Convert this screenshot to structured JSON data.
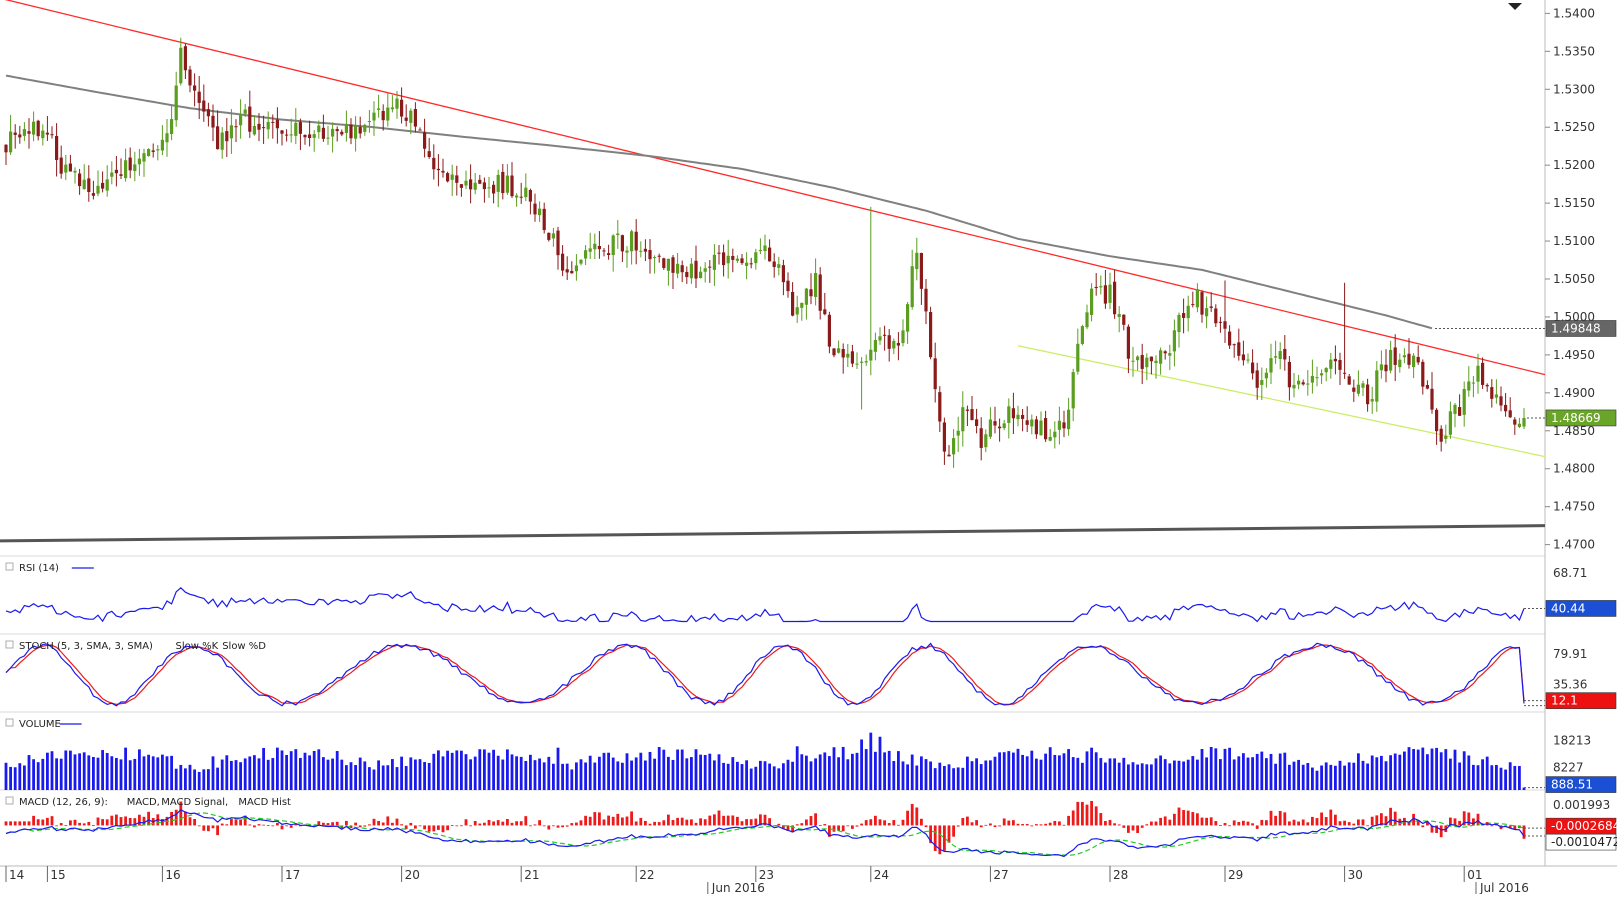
{
  "chart_data": {
    "type": "candlestick",
    "price_panel": {
      "y_ticks": [
        "1.5400",
        "1.5350",
        "1.5300",
        "1.5250",
        "1.5200",
        "1.5150",
        "1.5100",
        "1.5050",
        "1.5000",
        "1.4950",
        "1.4900",
        "1.4850",
        "1.4800",
        "1.4750",
        "1.4700"
      ],
      "ylim": [
        1.4685,
        1.5415
      ],
      "last_price": "1.48669",
      "ma_value": "1.49848",
      "sma_series": [
        {
          "i": 0,
          "v": 1.5318
        },
        {
          "i": 20,
          "v": 1.5296
        },
        {
          "i": 40,
          "v": 1.5275
        },
        {
          "i": 60,
          "v": 1.526
        },
        {
          "i": 80,
          "v": 1.525
        },
        {
          "i": 100,
          "v": 1.5237
        },
        {
          "i": 120,
          "v": 1.5225
        },
        {
          "i": 140,
          "v": 1.5212
        },
        {
          "i": 160,
          "v": 1.5195
        },
        {
          "i": 180,
          "v": 1.517
        },
        {
          "i": 200,
          "v": 1.514
        },
        {
          "i": 220,
          "v": 1.5103
        },
        {
          "i": 240,
          "v": 1.508
        },
        {
          "i": 260,
          "v": 1.5062
        },
        {
          "i": 280,
          "v": 1.5032
        },
        {
          "i": 300,
          "v": 1.5002
        },
        {
          "i": 310,
          "v": 1.4985
        }
      ],
      "resistance_line": {
        "start": {
          "i": 0,
          "v": 1.542
        },
        "end": {
          "i": 330,
          "v": 1.4924
        }
      },
      "channel_support_line": {
        "start": {
          "i": 220,
          "v": 1.4962
        },
        "end": {
          "i": 330,
          "v": 1.4816
        }
      },
      "long_support_line": {
        "start": {
          "i": 0,
          "v": 1.4705
        },
        "end": {
          "i": 330,
          "v": 1.4725
        }
      },
      "anchors": [
        {
          "i": 0,
          "v": 1.523
        },
        {
          "i": 8,
          "v": 1.5255
        },
        {
          "i": 12,
          "v": 1.52
        },
        {
          "i": 20,
          "v": 1.516
        },
        {
          "i": 26,
          "v": 1.52
        },
        {
          "i": 32,
          "v": 1.521
        },
        {
          "i": 36,
          "v": 1.525
        },
        {
          "i": 38,
          "v": 1.536
        },
        {
          "i": 42,
          "v": 1.527
        },
        {
          "i": 46,
          "v": 1.523
        },
        {
          "i": 52,
          "v": 1.526
        },
        {
          "i": 60,
          "v": 1.524
        },
        {
          "i": 70,
          "v": 1.5245
        },
        {
          "i": 78,
          "v": 1.525
        },
        {
          "i": 84,
          "v": 1.528
        },
        {
          "i": 88,
          "v": 1.527
        },
        {
          "i": 92,
          "v": 1.52
        },
        {
          "i": 96,
          "v": 1.5185
        },
        {
          "i": 104,
          "v": 1.5175
        },
        {
          "i": 112,
          "v": 1.517
        },
        {
          "i": 116,
          "v": 1.513
        },
        {
          "i": 122,
          "v": 1.5065
        },
        {
          "i": 130,
          "v": 1.5095
        },
        {
          "i": 138,
          "v": 1.51
        },
        {
          "i": 146,
          "v": 1.506
        },
        {
          "i": 154,
          "v": 1.507
        },
        {
          "i": 160,
          "v": 1.508
        },
        {
          "i": 166,
          "v": 1.5085
        },
        {
          "i": 172,
          "v": 1.5
        },
        {
          "i": 176,
          "v": 1.5045
        },
        {
          "i": 180,
          "v": 1.495
        },
        {
          "i": 186,
          "v": 1.4935
        },
        {
          "i": 190,
          "v": 1.498
        },
        {
          "i": 194,
          "v": 1.495
        },
        {
          "i": 198,
          "v": 1.509
        },
        {
          "i": 201,
          "v": 1.496
        },
        {
          "i": 204,
          "v": 1.481
        },
        {
          "i": 208,
          "v": 1.488
        },
        {
          "i": 212,
          "v": 1.484
        },
        {
          "i": 218,
          "v": 1.487
        },
        {
          "i": 224,
          "v": 1.485
        },
        {
          "i": 230,
          "v": 1.485
        },
        {
          "i": 233,
          "v": 1.496
        },
        {
          "i": 236,
          "v": 1.504
        },
        {
          "i": 240,
          "v": 1.503
        },
        {
          "i": 244,
          "v": 1.496
        },
        {
          "i": 250,
          "v": 1.493
        },
        {
          "i": 254,
          "v": 1.4975
        },
        {
          "i": 258,
          "v": 1.503
        },
        {
          "i": 264,
          "v": 1.499
        },
        {
          "i": 268,
          "v": 1.496
        },
        {
          "i": 272,
          "v": 1.492
        },
        {
          "i": 276,
          "v": 1.496
        },
        {
          "i": 280,
          "v": 1.4905
        },
        {
          "i": 286,
          "v": 1.494
        },
        {
          "i": 292,
          "v": 1.492
        },
        {
          "i": 296,
          "v": 1.4895
        },
        {
          "i": 300,
          "v": 1.494
        },
        {
          "i": 304,
          "v": 1.495
        },
        {
          "i": 308,
          "v": 1.492
        },
        {
          "i": 312,
          "v": 1.4845
        },
        {
          "i": 316,
          "v": 1.488
        },
        {
          "i": 320,
          "v": 1.4925
        },
        {
          "i": 324,
          "v": 1.489
        },
        {
          "i": 326,
          "v": 1.4867
        }
      ]
    },
    "x_axis": {
      "labels": [
        {
          "text": "14",
          "i": 0
        },
        {
          "text": "15",
          "i": 9
        },
        {
          "text": "16",
          "i": 34
        },
        {
          "text": "17",
          "i": 60
        },
        {
          "text": "20",
          "i": 86
        },
        {
          "text": "21",
          "i": 112
        },
        {
          "text": "22",
          "i": 137
        },
        {
          "text": "23",
          "i": 163
        },
        {
          "text": "24",
          "i": 188
        },
        {
          "text": "27",
          "i": 214
        },
        {
          "text": "28",
          "i": 240
        },
        {
          "text": "29",
          "i": 265
        },
        {
          "text": "30",
          "i": 291
        },
        {
          "text": "01",
          "i": 317
        }
      ],
      "month_labels": [
        {
          "text": "Jun 2016",
          "i": 153
        },
        {
          "text": "Jul 2016",
          "i": 320
        }
      ]
    },
    "indicators": {
      "rsi": {
        "label": "RSI (14)",
        "ticks": [
          "68.71"
        ],
        "last": "40.44"
      },
      "stoch": {
        "label": "STOCH (5, 3, SMA, 3, SMA)",
        "k_label": "Slow %K",
        "d_label": "Slow %D",
        "ticks": [
          "79.91",
          "35.36"
        ],
        "last": "12.1"
      },
      "volume": {
        "label": "VOLUME",
        "ticks": [
          "18213",
          "8227"
        ],
        "last": "888.51"
      },
      "macd": {
        "label": "MACD (12, 26, 9):",
        "macd_label": "MACD,",
        "signal_label": "MACD Signal,",
        "hist_label": "MACD Hist",
        "ticks": [
          "0.001993"
        ],
        "last": "-0.0002684",
        "last2": "-0.0010472"
      }
    },
    "colors": {
      "bull": "#5a9e1f",
      "bear": "#8b1a1a",
      "sma": "#808080",
      "resistance": "#ff2a2a",
      "channel": "#ccee66",
      "support": "#555555",
      "rsi": "#1a1aee",
      "stoch_k": "#1a1aee",
      "stoch_d": "#ee1a1a",
      "volume": "#1a1aee",
      "macd": "#1a1aee",
      "macd_signal": "#22cc22",
      "macd_hist": "#ee1a1a",
      "tag_price": "#6aa52a",
      "tag_stoch": "#ee1111",
      "tag_dark": "#555555",
      "tag_blue": "#1a4fd6"
    }
  }
}
